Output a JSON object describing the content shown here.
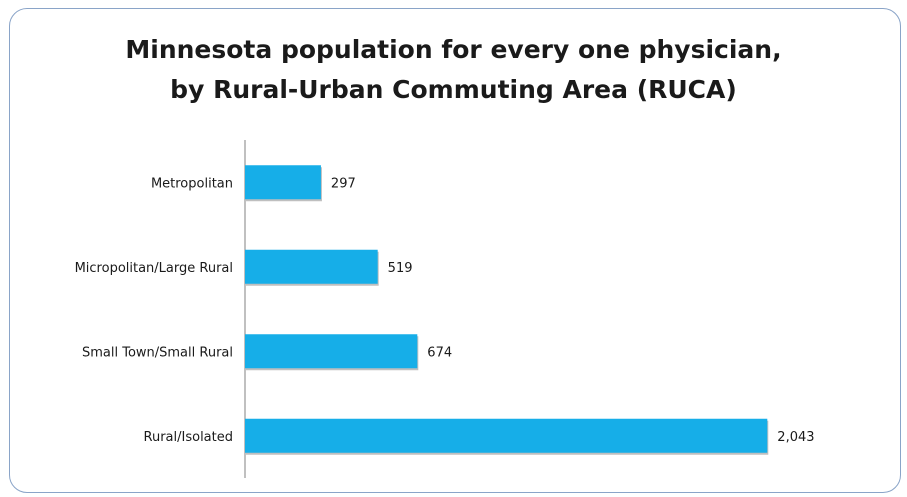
{
  "chart_data": {
    "type": "bar",
    "orientation": "horizontal",
    "title_lines": [
      "Minnesota population for every one physician,",
      "by Rural-Urban Commuting Area (RUCA)"
    ],
    "categories": [
      "Metropolitan",
      "Micropolitan/Large Rural",
      "Small Town/Small Rural",
      "Rural/Isolated"
    ],
    "values": [
      297,
      519,
      674,
      2043
    ],
    "value_labels": [
      "297",
      "519",
      "674",
      "2,043"
    ],
    "xlim": [
      0,
      2300
    ],
    "grid": false,
    "legend": "none",
    "bar_color": "#16aee8",
    "xlabel": "",
    "ylabel": ""
  }
}
